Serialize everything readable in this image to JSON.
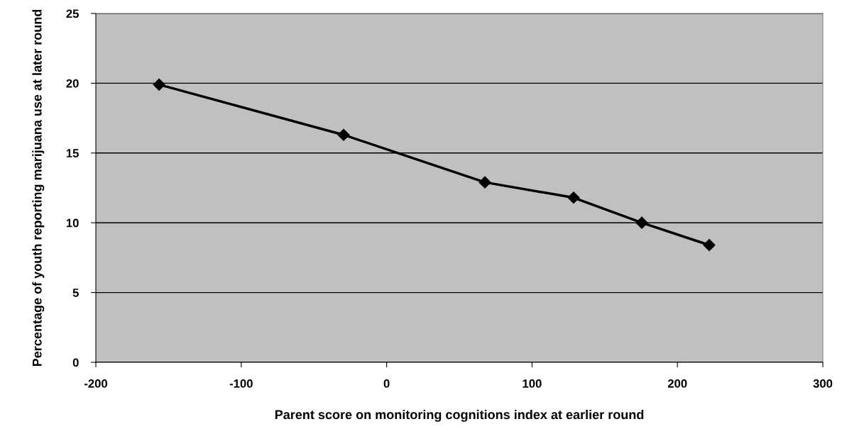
{
  "chart_data": {
    "type": "line",
    "xlabel": "Parent score on monitoring cognitions index at earlier round",
    "ylabel": "Percentage of youth reporting marijuana use at later round",
    "x": [
      -156.5,
      -29.6,
      67.6,
      128.6,
      175.5,
      221.9
    ],
    "series": [
      {
        "color": "#000000",
        "values": [
          19.9,
          16.3,
          12.9,
          11.8,
          10.0,
          8.4
        ]
      }
    ],
    "xlim": [
      -200,
      300
    ],
    "xticks": [
      -200,
      -100,
      0,
      100,
      200,
      300
    ],
    "ylim": [
      0,
      25
    ],
    "yticks": [
      0,
      5,
      10,
      15,
      20,
      25
    ],
    "grid": "y",
    "marker": "diamond",
    "line_style": "solid",
    "legend": false
  }
}
